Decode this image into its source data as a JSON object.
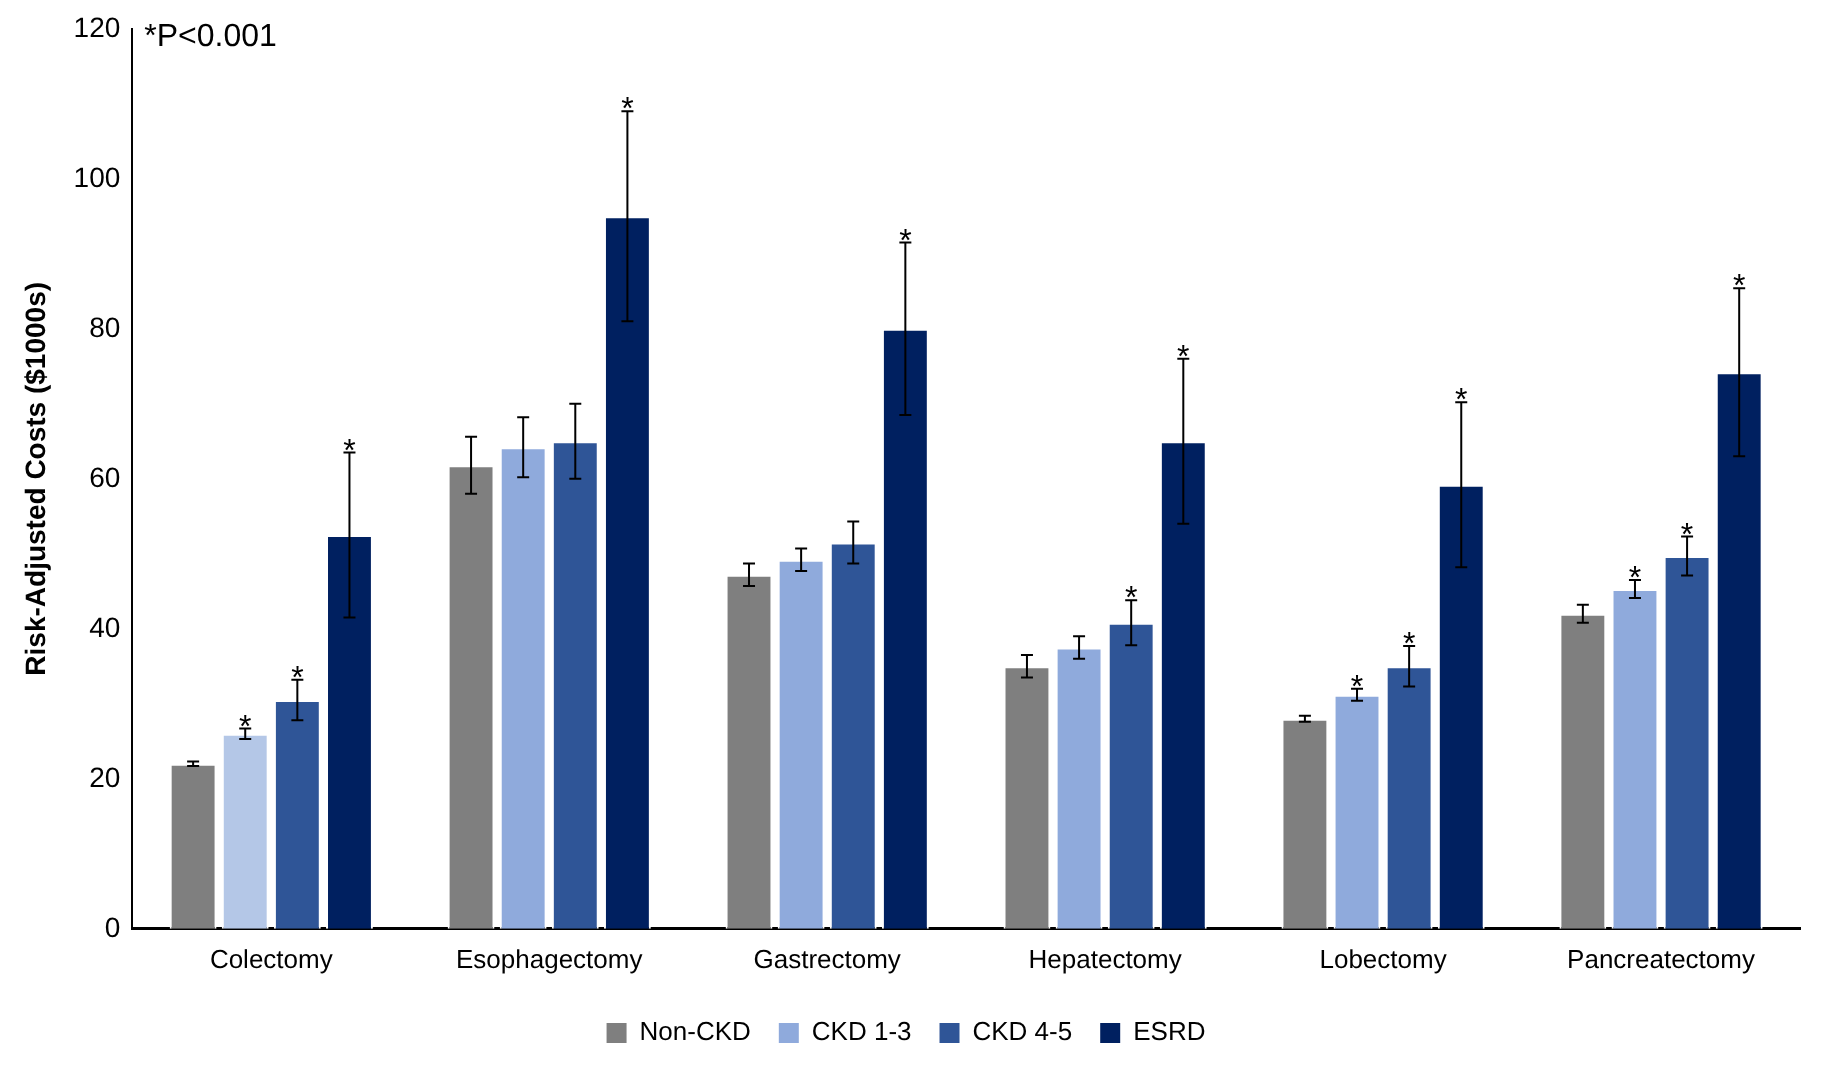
{
  "chart_data": {
    "type": "bar",
    "ylabel": "Risk-Adjusted Costs ($1000s)",
    "annotations": [
      "*P<0.001"
    ],
    "categories": [
      "Colectomy",
      "Esophagectomy",
      "Gastrectomy",
      "Hepatectomy",
      "Lobectomy",
      "Pancreatectomy"
    ],
    "series": [
      {
        "name": "Non-CKD",
        "color": "#7f7f7f",
        "values": [
          22,
          61.8,
          47.2,
          35,
          28,
          42
        ],
        "errors": [
          0.3,
          3.8,
          1.5,
          1.5,
          0.4,
          1.2
        ],
        "value_labels": [
          null,
          null,
          null,
          null,
          null,
          null
        ]
      },
      {
        "name": "CKD 1-3",
        "color": "#8faadc",
        "colors": [
          "#b4c7e7",
          "#8faadc",
          "#8faadc",
          "#8faadc",
          "#8faadc",
          "#8faadc"
        ],
        "values": [
          26,
          64.2,
          49.2,
          37.5,
          31.2,
          45.3
        ],
        "errors": [
          0.7,
          4,
          1.5,
          1.5,
          0.8,
          1.2
        ],
        "value_labels": [
          "*",
          null,
          null,
          null,
          "*",
          "*"
        ]
      },
      {
        "name": "CKD 4-5",
        "color": "#2f5597",
        "values": [
          30.5,
          65,
          51.5,
          40.8,
          35,
          49.7
        ],
        "errors": [
          2.7,
          5,
          2.8,
          3,
          2.7,
          2.6
        ],
        "value_labels": [
          "*",
          null,
          null,
          "*",
          "*",
          "*"
        ]
      },
      {
        "name": "ESRD",
        "color": "#002060",
        "values": [
          52.5,
          95,
          80,
          65,
          59.2,
          74.2
        ],
        "errors": [
          11,
          14,
          11.5,
          11,
          11,
          11.2
        ],
        "value_labels": [
          "*",
          "*",
          "*",
          "*",
          "*",
          "*"
        ]
      }
    ],
    "ylim": [
      0,
      120
    ],
    "yticks": [
      0,
      20,
      40,
      60,
      80,
      100,
      120
    ],
    "grid": false,
    "legend": "bottom"
  }
}
